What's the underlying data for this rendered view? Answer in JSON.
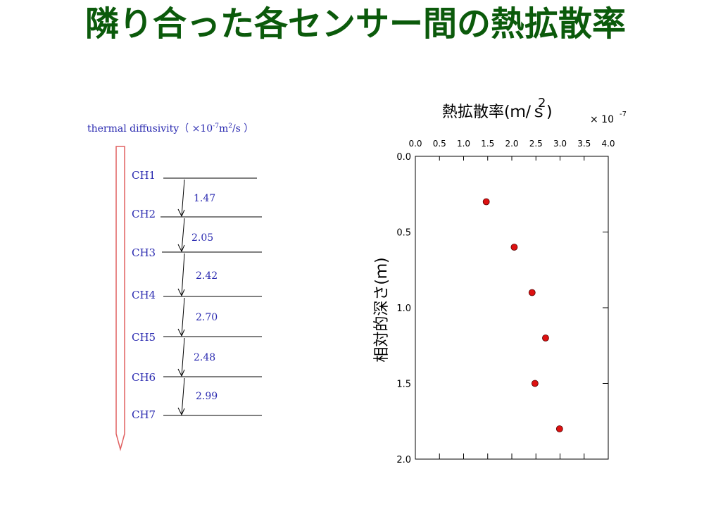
{
  "title": "隣り合った各センサー間の熱拡散率",
  "diagram": {
    "header_prefix": "thermal diffusivity（ ×10",
    "header_exp": "-7",
    "header_unit": "m",
    "header_unit_exp": "2",
    "header_suffix": "/s ）",
    "channels": [
      "CH1",
      "CH2",
      "CH3",
      "CH4",
      "CH5",
      "CH6",
      "CH7"
    ],
    "values": [
      "1.47",
      "2.05",
      "2.42",
      "2.70",
      "2.48",
      "2.99"
    ]
  },
  "chart_data": {
    "type": "scatter",
    "title_main": "熱拡散率",
    "title_unit": "(ｍ/ｓ)",
    "title_unit_exp": "2",
    "multiplier": "× 10",
    "multiplier_exp": "-7",
    "ylabel": "相対的深さ(ｍ)",
    "x_ticks": [
      "0.0",
      "0.5",
      "1.0",
      "1.5",
      "2.0",
      "2.5",
      "3.0",
      "3.5",
      "4.0"
    ],
    "y_ticks": [
      "0.0",
      "0.5",
      "1.0",
      "1.5",
      "2.0"
    ],
    "xlim": [
      0,
      4
    ],
    "ylim": [
      0,
      2
    ],
    "x_axis_position": "top",
    "y_inverted": true,
    "grid": false,
    "marker_color": "#dd1111",
    "points": [
      {
        "x": 1.47,
        "y": 0.3
      },
      {
        "x": 2.05,
        "y": 0.6
      },
      {
        "x": 2.42,
        "y": 0.9
      },
      {
        "x": 2.7,
        "y": 1.2
      },
      {
        "x": 2.48,
        "y": 1.5
      },
      {
        "x": 2.99,
        "y": 1.8
      }
    ]
  }
}
